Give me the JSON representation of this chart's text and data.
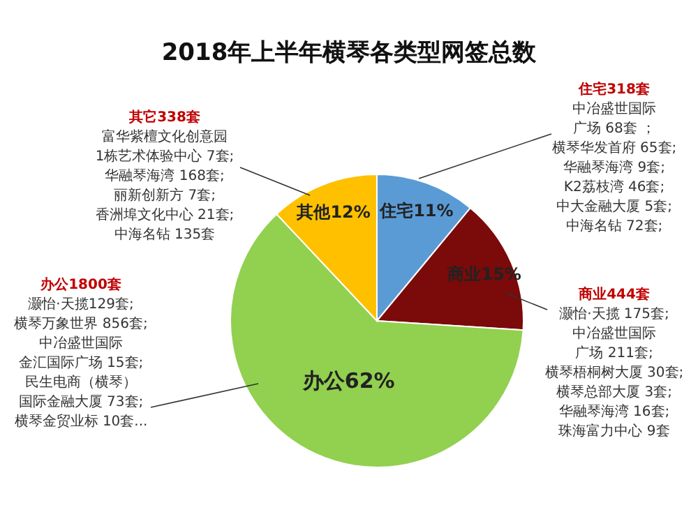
{
  "chart_data": {
    "type": "pie",
    "title": "2018年上半年横琴各类型网签总数",
    "categories": [
      "住宅",
      "商业",
      "办公",
      "其他"
    ],
    "values": [
      11,
      15,
      62,
      12
    ],
    "value_labels": [
      "11%",
      "15%",
      "62%",
      "12%"
    ],
    "colors": [
      "#5b9bd5",
      "#7b0a0a",
      "#92d050",
      "#ffc000"
    ],
    "annotations": [
      "住宅318套",
      "中冶盛世国际",
      "广场 68套 ；",
      "横琴华发首府 65套;",
      "华融琴海湾 9套;",
      "K2荔枝湾 46套;",
      "中大金融大厦 5套;",
      "中海名钻 72套;",
      "商业444套",
      "灏怡·天揽 175套;",
      "中冶盛世国际",
      "广场 211套;",
      "横琴梧桐树大厦 30套;",
      "横琴总部大厦 3套;",
      "华融琴海湾 16套;",
      "珠海富力中心 9套",
      "办公1800套",
      "灏怡·天揽129套;",
      "横琴万象世界 856套;",
      "中冶盛世国际",
      "金汇国际广场 15套;",
      "民生电商（横琴）",
      "国际金融大厦 73套;",
      "横琴金贸业标 10套...",
      "其它338套",
      "富华紫檀文化创意园",
      "1栋艺术体验中心 7套;",
      "华融琴海湾 168套;",
      "丽新创新方 7套;",
      "香洲埠文化中心 21套;",
      "中海名钻 135套"
    ]
  }
}
